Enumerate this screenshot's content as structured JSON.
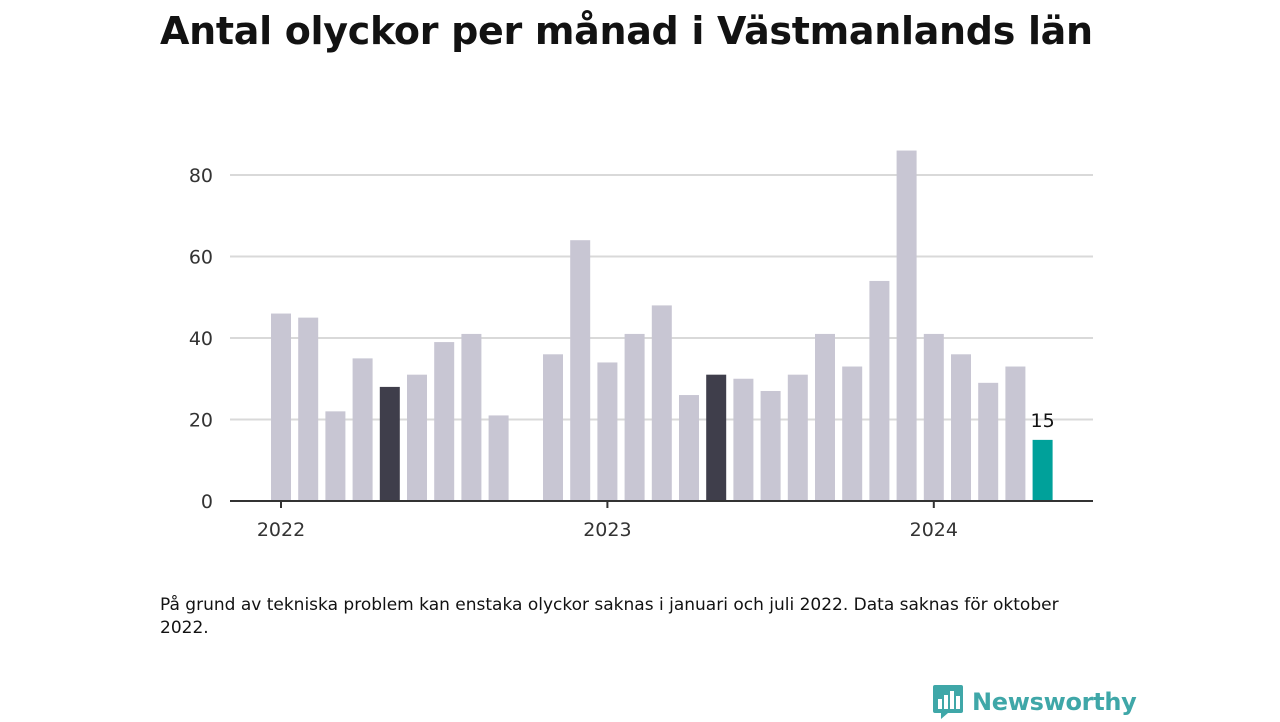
{
  "title": "Antal olyckor per månad i Västmanlands län",
  "footnote": "På grund av tekniska problem kan enstaka olyckor saknas i januari och juli 2022. Data saknas för oktober 2022.",
  "brand": {
    "name": "Newsworthy",
    "icon": "newsworthy-bar-chart-bubble-icon",
    "color": "#3fa7a8"
  },
  "colors": {
    "default_bar": "#c8c6d3",
    "highlight_bar": "#3f3e4b",
    "latest_bar": "#00a19a",
    "gridline": "#d9d9d9",
    "axis": "#333333"
  },
  "chart_data": {
    "type": "bar",
    "title": "Antal olyckor per månad i Västmanlands län",
    "xlabel": "",
    "ylabel": "",
    "ylim": [
      0,
      88
    ],
    "yticks": [
      0,
      20,
      40,
      60,
      80
    ],
    "xticks": [
      {
        "label": "2022",
        "month": "2022-01"
      },
      {
        "label": "2023",
        "month": "2023-01"
      },
      {
        "label": "2024",
        "month": "2024-01"
      }
    ],
    "grid": true,
    "legend": "none",
    "categories": [
      "2022-01",
      "2022-02",
      "2022-03",
      "2022-04",
      "2022-05",
      "2022-06",
      "2022-07",
      "2022-08",
      "2022-09",
      "2022-10",
      "2022-11",
      "2022-12",
      "2023-01",
      "2023-02",
      "2023-03",
      "2023-04",
      "2023-05",
      "2023-06",
      "2023-07",
      "2023-08",
      "2023-09",
      "2023-10",
      "2023-11",
      "2023-12",
      "2024-01",
      "2024-02",
      "2024-03",
      "2024-04",
      "2024-05"
    ],
    "values": [
      46,
      45,
      22,
      35,
      28,
      31,
      39,
      41,
      21,
      null,
      36,
      64,
      34,
      41,
      48,
      26,
      31,
      30,
      27,
      31,
      41,
      33,
      54,
      86,
      41,
      36,
      29,
      33,
      15
    ],
    "highlighted": [
      "2022-05",
      "2023-05"
    ],
    "latest": "2024-05",
    "data_labels": [
      {
        "category": "2024-05",
        "text": "15"
      }
    ]
  }
}
